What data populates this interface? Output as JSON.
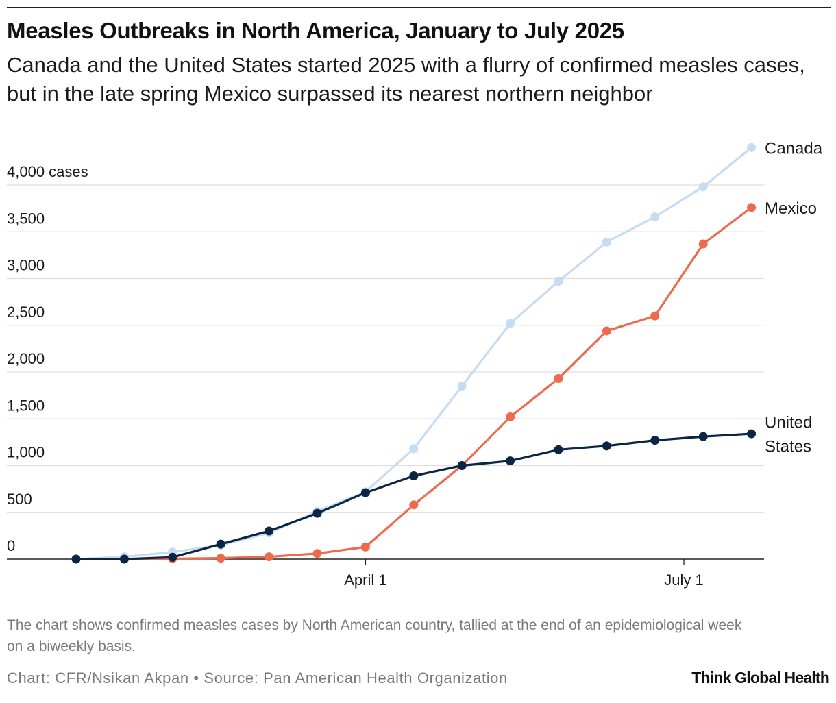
{
  "header": {
    "title": "Measles Outbreaks in North America, January to July 2025",
    "subtitle": "Canada and the United States started 2025 with a flurry of confirmed measles cases, but in the late spring Mexico surpassed its nearest northern neighbor"
  },
  "footer": {
    "note": "The chart shows confirmed measles cases by North American country, tallied at the end of an epidemiological week on a biweekly basis.",
    "source": "Chart: CFR/Nsikan Akpan • Source: Pan American Health Organization",
    "brand": "Think Global Health"
  },
  "chart_data": {
    "type": "line",
    "title": "Measles Outbreaks in North America, January to July 2025",
    "xlabel": "",
    "ylabel": "cases",
    "ylim": [
      0,
      4000
    ],
    "yticks": [
      {
        "value": 0,
        "label": "0"
      },
      {
        "value": 500,
        "label": "500"
      },
      {
        "value": 1000,
        "label": "1,000"
      },
      {
        "value": 1500,
        "label": "1,500"
      },
      {
        "value": 2000,
        "label": "2,000"
      },
      {
        "value": 2500,
        "label": "2,500"
      },
      {
        "value": 3000,
        "label": "3,000"
      },
      {
        "value": 3500,
        "label": "3,500"
      },
      {
        "value": 4000,
        "label": "4,000 cases"
      }
    ],
    "x_period_count": 15,
    "x_period_max": 14.4,
    "xticks": [
      {
        "period": 6,
        "label": "April 1"
      },
      {
        "period": 12.6,
        "label": "July 1"
      }
    ],
    "grid": true,
    "series": [
      {
        "name": "Canada",
        "label_lines": [
          "Canada"
        ],
        "color": "#c6dcf2",
        "values": [
          0,
          25,
          75,
          150,
          280,
          510,
          720,
          1180,
          1850,
          2520,
          2970,
          3390,
          3660,
          3980,
          4400
        ]
      },
      {
        "name": "Mexico",
        "label_lines": [
          "Mexico"
        ],
        "color": "#ee6a4c",
        "values": [
          0,
          0,
          5,
          10,
          25,
          60,
          130,
          580,
          1000,
          1520,
          1930,
          2440,
          2600,
          3370,
          3760
        ]
      },
      {
        "name": "United States",
        "label_lines": [
          "United",
          "States"
        ],
        "color": "#0b2545",
        "values": [
          0,
          0,
          20,
          160,
          300,
          490,
          710,
          890,
          1000,
          1050,
          1170,
          1210,
          1270,
          1310,
          1340
        ]
      }
    ]
  }
}
